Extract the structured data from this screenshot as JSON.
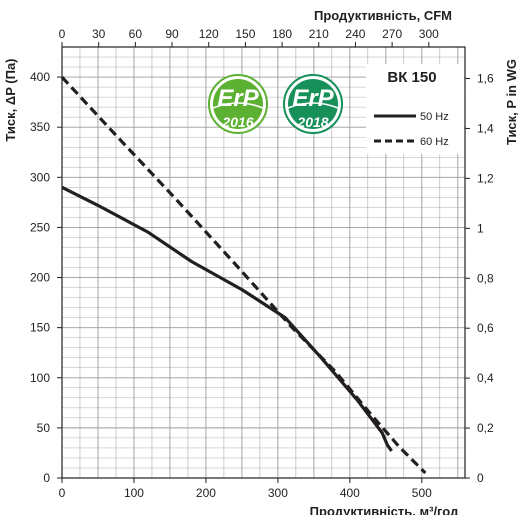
{
  "chart_data": {
    "type": "line",
    "model": "ВК 150",
    "xlabel_bottom": "Продуктивність, м³/год",
    "xlabel_top": "Продуктивність, CFM",
    "ylabel_left": "Тиск, ΔP (Па)",
    "ylabel_right": "Тиск, P in WG",
    "xlim": [
      0,
      560
    ],
    "ylim": [
      0,
      430
    ],
    "x_ticks_bottom": [
      "0",
      "100",
      "200",
      "300",
      "400",
      "500"
    ],
    "x_ticks_top": [
      "0",
      "30",
      "60",
      "90",
      "120",
      "150",
      "180",
      "210",
      "240",
      "270",
      "300"
    ],
    "y_ticks_left": [
      "0",
      "50",
      "100",
      "150",
      "200",
      "250",
      "300",
      "350",
      "400"
    ],
    "y_ticks_right": [
      "0",
      "0,2",
      "0,4",
      "0,6",
      "0,8",
      "1",
      "1,2",
      "1,4",
      "1,6"
    ],
    "grid": true,
    "legend_position": "top-right",
    "series": [
      {
        "name": "50 Hz",
        "style": "solid",
        "x": [
          0,
          50,
          120,
          180,
          250,
          310,
          360,
          410,
          445,
          452,
          458
        ],
        "y": [
          290,
          272,
          245,
          216,
          188,
          160,
          120,
          78,
          45,
          33,
          27
        ]
      },
      {
        "name": "60 Hz",
        "style": "dashed",
        "x": [
          0,
          80,
          160,
          240,
          320,
          380,
          430,
          470,
          505
        ],
        "y": [
          400,
          338,
          277,
          214,
          150,
          106,
          63,
          30,
          5
        ]
      }
    ]
  },
  "badges": [
    {
      "text": "ErP",
      "year": "2016",
      "color": "#5cb032"
    },
    {
      "text": "ErP",
      "year": "2018",
      "color": "#17905a"
    }
  ],
  "colors": {
    "line": "#231f20",
    "grid": "#9b9b9b",
    "axis": "#231f20"
  }
}
